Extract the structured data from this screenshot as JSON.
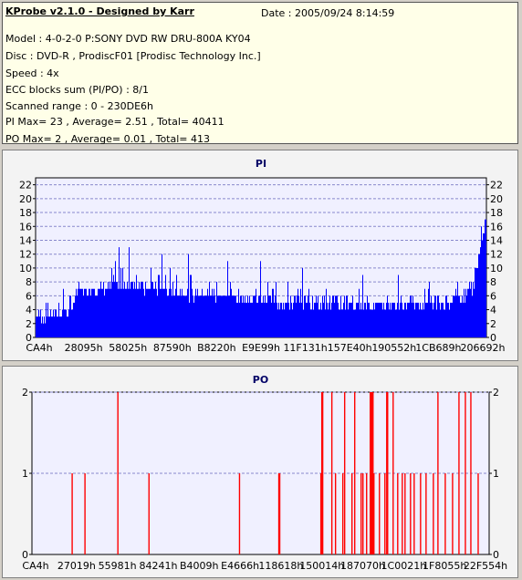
{
  "info": {
    "title": "KProbe v2.1.0 - Designed by Karr",
    "date": "Date : 2005/09/24 8:14:59",
    "lines": [
      "Model : 4-0-2-0 P:SONY    DVD RW DRU-800A  KY04",
      "Disc : DVD-R , ProdiscF01 [Prodisc Technology Inc.]",
      "Speed : 4x",
      "ECC blocks sum (PI/PO) : 8/1",
      "Scanned range : 0 - 230DE6h",
      "PI Max= 23 , Average= 2.51 , Total= 40411",
      "PO Max= 2 , Average= 0.01 , Total= 413"
    ]
  },
  "colors": {
    "pi": "#0000ff",
    "po": "#ff0000",
    "plot_bg": "#f0f0ff",
    "grid": "#8888cc"
  },
  "chart_data": [
    {
      "type": "bar",
      "title": "PI",
      "ylim": [
        0,
        23
      ],
      "yticks": [
        0,
        2,
        4,
        6,
        8,
        10,
        12,
        14,
        16,
        18,
        20,
        22
      ],
      "xticks": [
        "CA4h",
        "28095h",
        "58025h",
        "87590h",
        "B8220h",
        "E9E99h",
        "11F131h",
        "157E40h",
        "190552h",
        "1CB689h",
        "206692h"
      ],
      "grid": true,
      "profile": {
        "x": [
          0,
          0.03,
          0.08,
          0.09,
          0.16,
          0.22,
          0.3,
          0.38,
          0.46,
          0.54,
          0.62,
          0.7,
          0.78,
          0.85,
          0.92,
          0.95,
          0.97,
          0.985,
          1.0
        ],
        "base": [
          3,
          3,
          4,
          6.5,
          7,
          7.5,
          6.5,
          6,
          5.5,
          5,
          5,
          4.5,
          4.5,
          4.5,
          5,
          5.5,
          7,
          12,
          17
        ],
        "peak": [
          4,
          5,
          6,
          9,
          11,
          11,
          10,
          9,
          8,
          8,
          7,
          7,
          6,
          6,
          6,
          7,
          10,
          14,
          17
        ]
      }
    },
    {
      "type": "bar",
      "title": "PO",
      "ylim": [
        0,
        2
      ],
      "yticks": [
        0,
        1,
        2
      ],
      "xticks": [
        "CA4h",
        "27019h",
        "55981h",
        "84241h",
        "B4009h",
        "E4666h",
        "118618h",
        "150014h",
        "187070h",
        "1C0021h",
        "1F8055h",
        "22F554h"
      ],
      "grid": true,
      "spikes": [
        {
          "x": 0.088,
          "y": 1
        },
        {
          "x": 0.116,
          "y": 1
        },
        {
          "x": 0.188,
          "y": 2
        },
        {
          "x": 0.256,
          "y": 1
        },
        {
          "x": 0.454,
          "y": 1
        },
        {
          "x": 0.54,
          "y": 1
        },
        {
          "x": 0.541,
          "y": 1
        },
        {
          "x": 0.542,
          "y": 1
        },
        {
          "x": 0.632,
          "y": 1
        },
        {
          "x": 0.634,
          "y": 2
        },
        {
          "x": 0.636,
          "y": 2
        },
        {
          "x": 0.656,
          "y": 2
        },
        {
          "x": 0.664,
          "y": 1
        },
        {
          "x": 0.68,
          "y": 1
        },
        {
          "x": 0.684,
          "y": 2
        },
        {
          "x": 0.7,
          "y": 1
        },
        {
          "x": 0.706,
          "y": 2
        },
        {
          "x": 0.72,
          "y": 1
        },
        {
          "x": 0.724,
          "y": 1
        },
        {
          "x": 0.732,
          "y": 1
        },
        {
          "x": 0.74,
          "y": 2
        },
        {
          "x": 0.742,
          "y": 2
        },
        {
          "x": 0.744,
          "y": 2
        },
        {
          "x": 0.746,
          "y": 2
        },
        {
          "x": 0.748,
          "y": 1
        },
        {
          "x": 0.76,
          "y": 1
        },
        {
          "x": 0.772,
          "y": 1
        },
        {
          "x": 0.776,
          "y": 2
        },
        {
          "x": 0.778,
          "y": 2
        },
        {
          "x": 0.79,
          "y": 2
        },
        {
          "x": 0.8,
          "y": 1
        },
        {
          "x": 0.81,
          "y": 1
        },
        {
          "x": 0.816,
          "y": 1
        },
        {
          "x": 0.828,
          "y": 1
        },
        {
          "x": 0.836,
          "y": 1
        },
        {
          "x": 0.85,
          "y": 1
        },
        {
          "x": 0.862,
          "y": 1
        },
        {
          "x": 0.878,
          "y": 1
        },
        {
          "x": 0.888,
          "y": 2
        },
        {
          "x": 0.904,
          "y": 1
        },
        {
          "x": 0.92,
          "y": 1
        },
        {
          "x": 0.934,
          "y": 2
        },
        {
          "x": 0.948,
          "y": 2
        },
        {
          "x": 0.96,
          "y": 2
        },
        {
          "x": 0.976,
          "y": 1
        }
      ]
    }
  ]
}
